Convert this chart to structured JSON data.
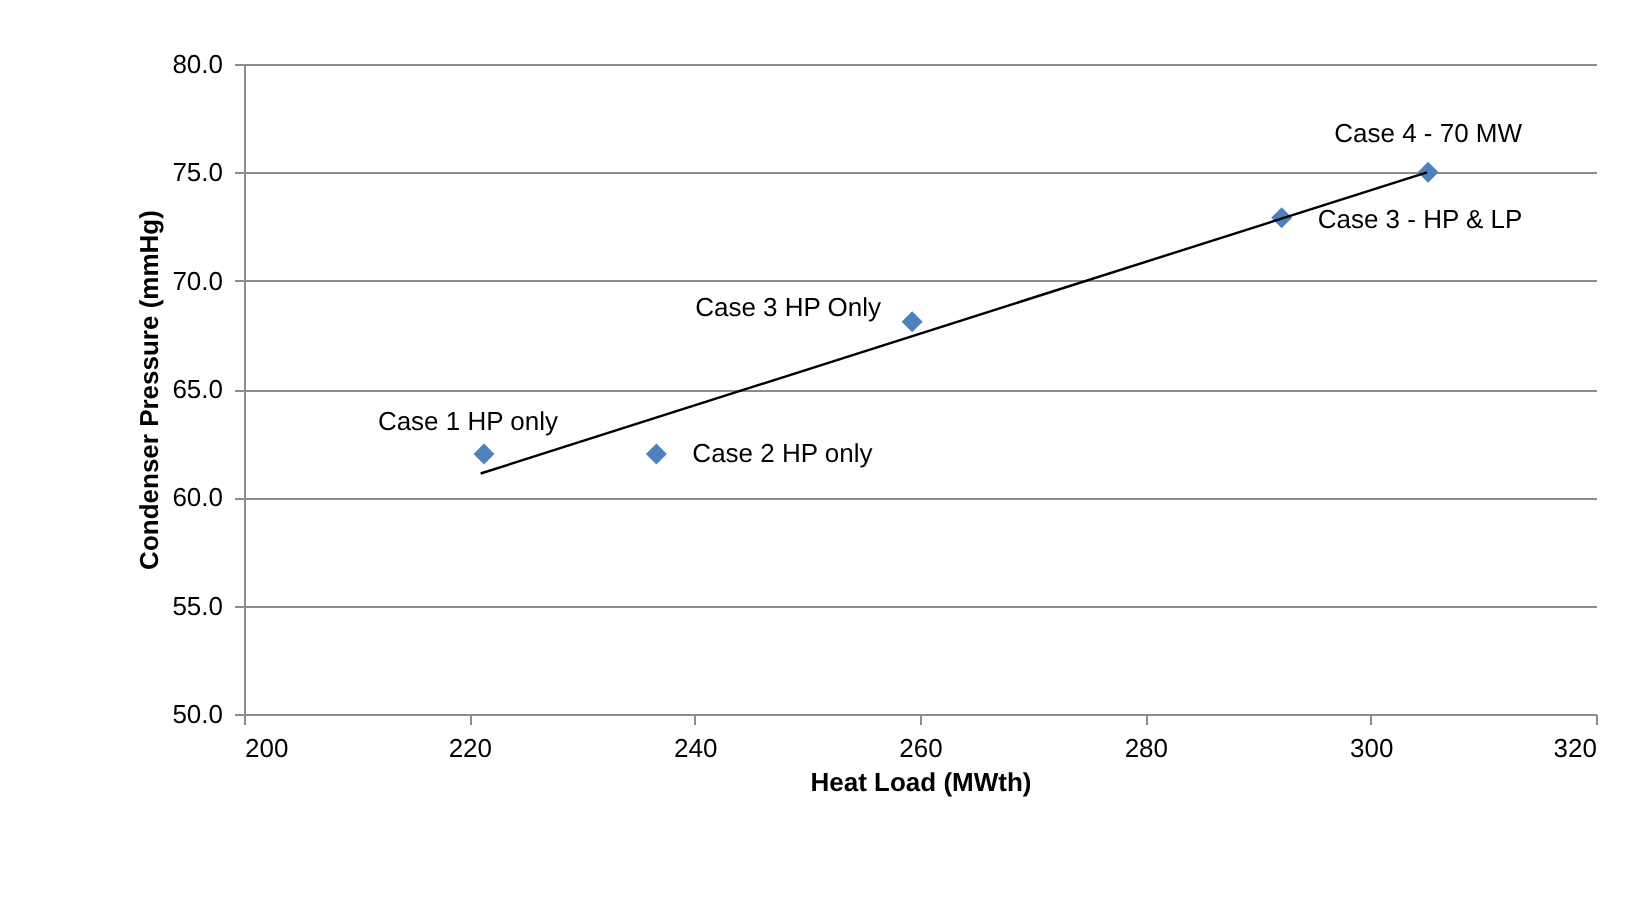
{
  "chart_data": {
    "type": "scatter",
    "xlabel": "Heat Load (MWth)",
    "ylabel": "Condenser Pressure (mmHg)",
    "x": [
      221.3,
      236.6,
      259.3,
      292.1,
      305.1
    ],
    "series": [
      {
        "color": "#4f81bd",
        "marker": "diamond",
        "values": [
          62.0,
          62.0,
          68.1,
          72.9,
          75.0
        ]
      },
      {
        "type": "line",
        "color": "#000000",
        "x": [
          221,
          305
        ],
        "values": [
          61.1,
          75.0
        ]
      }
    ],
    "xlim": [
      200,
      320
    ],
    "xticks": [
      200,
      220,
      240,
      260,
      280,
      300,
      320
    ],
    "ylim": [
      50,
      80
    ],
    "yticks": [
      {
        "value": 50,
        "label": "50.0"
      },
      {
        "value": 55,
        "label": "55.0"
      },
      {
        "value": 60,
        "label": "60.0"
      },
      {
        "value": 65,
        "label": "65.0"
      },
      {
        "value": 70,
        "label": "70.0"
      },
      {
        "value": 75,
        "label": "75.0"
      },
      {
        "value": 80,
        "label": "80.0"
      }
    ],
    "grid": "y",
    "line_style": "solid",
    "annotations": [
      {
        "text": "Case 1 HP only",
        "x": 221.3,
        "y": 62.0
      },
      {
        "text": "Case 2 HP only",
        "x": 236.6,
        "y": 62.0
      },
      {
        "text": "Case 3 HP Only",
        "x": 259.3,
        "y": 68.1
      },
      {
        "text": "Case 3 - HP & LP",
        "x": 292.1,
        "y": 72.9
      },
      {
        "text": "Case 4 - 70 MW",
        "x": 305.1,
        "y": 75.0
      }
    ]
  }
}
